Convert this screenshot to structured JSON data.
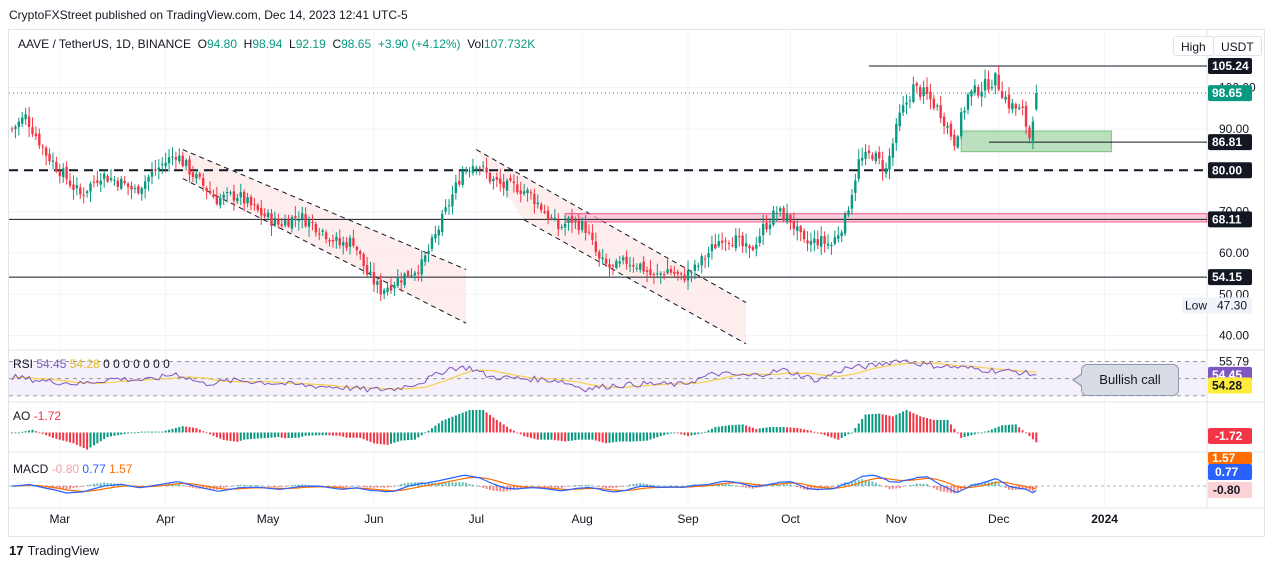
{
  "header": {
    "title": "CryptoFXStreet published on TradingView.com, Dec 14, 2023 12:41 UTC-5"
  },
  "legend": {
    "symbol": "AAVE / TetherUS, 1D, BINANCE",
    "open_label": "O",
    "open": "94.80",
    "high_label": "H",
    "high": "98.94",
    "low_label": "L",
    "low": "92.19",
    "close_label": "C",
    "close": "98.65",
    "change": "+3.90 (+4.12%)",
    "vol_label": "Vol",
    "vol": "107.732K"
  },
  "controls": {
    "high_button": "High",
    "currency_button": "USDT"
  },
  "callout": {
    "text": "Bullish call"
  },
  "footer": {
    "brand": "TradingView",
    "logo_text": "17"
  },
  "colors": {
    "up": "#089981",
    "down": "#f23645",
    "rsi": "#7e57c2",
    "rsi_ma": "#f7d04b",
    "macd": "#2962ff",
    "signal": "#ff6d00",
    "grid": "#f0f3fa",
    "channel_fill": "#fce8e8",
    "demand_zone": "#a5d6a7",
    "resistance_zone": "#f8bbd0"
  },
  "chart_data": {
    "type": "candlestick",
    "title": "AAVE / TetherUS, 1D, BINANCE",
    "ylim": [
      37,
      112
    ],
    "y_ticks": [
      40,
      50,
      60,
      70,
      80,
      90,
      100
    ],
    "x_tick_labels": [
      "Mar",
      "Apr",
      "May",
      "Jun",
      "Jul",
      "Aug",
      "Sep",
      "Oct",
      "Nov",
      "Dec",
      "2024"
    ],
    "x_tick_days": [
      14,
      45,
      75,
      106,
      136,
      167,
      198,
      228,
      259,
      289,
      320
    ],
    "total_days": 350,
    "price_path_keypoints": [
      [
        0,
        90
      ],
      [
        4,
        93
      ],
      [
        10,
        84
      ],
      [
        16,
        78
      ],
      [
        20,
        74
      ],
      [
        26,
        79
      ],
      [
        32,
        77
      ],
      [
        36,
        75
      ],
      [
        42,
        80
      ],
      [
        48,
        84
      ],
      [
        54,
        78
      ],
      [
        60,
        73
      ],
      [
        66,
        74
      ],
      [
        72,
        70
      ],
      [
        78,
        67
      ],
      [
        84,
        69
      ],
      [
        90,
        66
      ],
      [
        96,
        62
      ],
      [
        100,
        63
      ],
      [
        104,
        55
      ],
      [
        108,
        51
      ],
      [
        112,
        53
      ],
      [
        120,
        57
      ],
      [
        124,
        64
      ],
      [
        128,
        72
      ],
      [
        132,
        80
      ],
      [
        136,
        82
      ],
      [
        140,
        78
      ],
      [
        144,
        76
      ],
      [
        148,
        76
      ],
      [
        152,
        74
      ],
      [
        156,
        70
      ],
      [
        160,
        66
      ],
      [
        164,
        68
      ],
      [
        168,
        66
      ],
      [
        172,
        58
      ],
      [
        176,
        56
      ],
      [
        180,
        58
      ],
      [
        184,
        57
      ],
      [
        188,
        54
      ],
      [
        192,
        56
      ],
      [
        196,
        54
      ],
      [
        200,
        56
      ],
      [
        204,
        60
      ],
      [
        208,
        64
      ],
      [
        212,
        63
      ],
      [
        216,
        60
      ],
      [
        220,
        66
      ],
      [
        224,
        70
      ],
      [
        228,
        68
      ],
      [
        232,
        62
      ],
      [
        236,
        63
      ],
      [
        240,
        62
      ],
      [
        244,
        68
      ],
      [
        248,
        82
      ],
      [
        252,
        84
      ],
      [
        256,
        80
      ],
      [
        260,
        93
      ],
      [
        264,
        100
      ],
      [
        268,
        98
      ],
      [
        272,
        94
      ],
      [
        276,
        87
      ],
      [
        280,
        98
      ],
      [
        284,
        100
      ],
      [
        288,
        102
      ],
      [
        292,
        96
      ],
      [
        296,
        94
      ],
      [
        298,
        88
      ],
      [
        300,
        98.65
      ]
    ],
    "levels": [
      {
        "label": "105.24",
        "value": 105.24,
        "style": "solid"
      },
      {
        "label": "98.65",
        "value": 98.65,
        "style": "dotted",
        "kind": "last_price"
      },
      {
        "label": "86.81",
        "value": 86.81,
        "style": "solid"
      },
      {
        "label": "80.00",
        "value": 80.0,
        "style": "dashed"
      },
      {
        "label": "68.11",
        "value": 68.11,
        "style": "solid"
      },
      {
        "label": "54.15",
        "value": 54.15,
        "style": "solid"
      }
    ],
    "extra_y_labels": {
      "low_label": "Low",
      "low": "47.30",
      "partial_100": "100.00",
      "partial_70": "70.00",
      "partial_50": "50.00"
    },
    "channels": [
      {
        "upper": [
          [
            50,
            85
          ],
          [
            133,
            56
          ]
        ],
        "lower": [
          [
            50,
            78
          ],
          [
            133,
            43
          ]
        ]
      },
      {
        "upper": [
          [
            136,
            85
          ],
          [
            215,
            48
          ]
        ],
        "lower": [
          [
            150,
            68
          ],
          [
            215,
            38
          ]
        ]
      }
    ],
    "zones": [
      {
        "name": "demand",
        "y_from": 84.5,
        "y_to": 89.5,
        "x_from": 278,
        "x_to": 322
      },
      {
        "name": "resistance",
        "y_from": 67.5,
        "y_to": 69.5,
        "x_from": 162,
        "x_to": 350
      }
    ],
    "rsi": {
      "label": "RSI",
      "value": "54.45",
      "ma": "54.28",
      "ma_label": "54.28",
      "extras": "0 0 0 0 0 0 0",
      "upper_band_label": "55.79",
      "keypoints": [
        [
          0,
          52
        ],
        [
          10,
          47
        ],
        [
          20,
          44
        ],
        [
          30,
          50
        ],
        [
          40,
          48
        ],
        [
          48,
          56
        ],
        [
          56,
          44
        ],
        [
          66,
          48
        ],
        [
          76,
          45
        ],
        [
          86,
          42
        ],
        [
          96,
          40
        ],
        [
          104,
          37
        ],
        [
          112,
          38
        ],
        [
          120,
          46
        ],
        [
          128,
          62
        ],
        [
          134,
          63
        ],
        [
          140,
          52
        ],
        [
          150,
          50
        ],
        [
          160,
          48
        ],
        [
          168,
          38
        ],
        [
          176,
          42
        ],
        [
          186,
          44
        ],
        [
          196,
          43
        ],
        [
          206,
          56
        ],
        [
          216,
          53
        ],
        [
          226,
          60
        ],
        [
          236,
          48
        ],
        [
          244,
          62
        ],
        [
          252,
          65
        ],
        [
          260,
          72
        ],
        [
          268,
          66
        ],
        [
          278,
          63
        ],
        [
          286,
          60
        ],
        [
          294,
          58
        ],
        [
          300,
          54.45
        ]
      ]
    },
    "ao": {
      "label": "AO",
      "value": "-1.72",
      "value_label": "-1.72"
    },
    "macd": {
      "label": "MACD",
      "hist": "-0.80",
      "macd": "0.77",
      "signal": "1.57",
      "macd_label": "0.77",
      "signal_label": "1.57",
      "hist_label": "-0.80"
    }
  }
}
